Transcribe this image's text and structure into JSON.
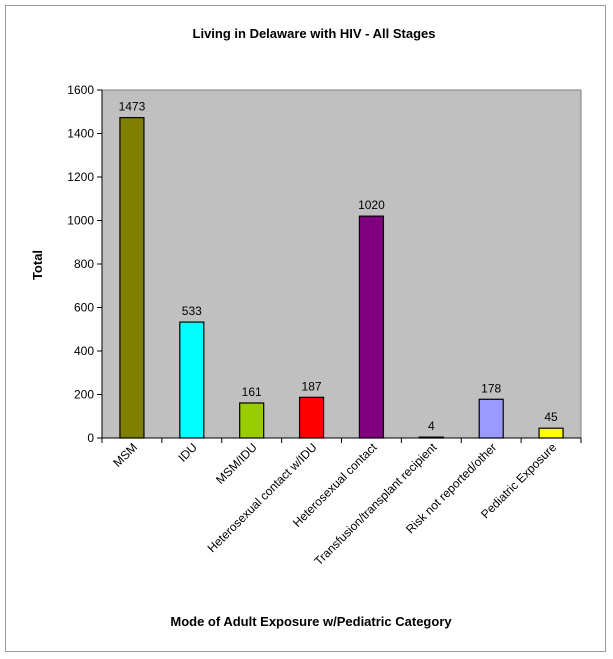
{
  "chart_data": {
    "type": "bar",
    "title": "Living in Delaware with HIV - All Stages",
    "xlabel": "Mode of Adult Exposure w/Pediatric Category",
    "ylabel": "Total",
    "ylim": [
      0,
      1600
    ],
    "yticks": [
      0,
      200,
      400,
      600,
      800,
      1000,
      1200,
      1400,
      1600
    ],
    "categories": [
      "MSM",
      "IDU",
      "MSM/IDU",
      "Heterosexual contact w/IDU",
      "Heterosexual contact",
      "Transfusion/transplant recipient",
      "Risk not reported/other",
      "Pediatric Exposure"
    ],
    "values": [
      1473,
      533,
      161,
      187,
      1020,
      4,
      178,
      45
    ],
    "data_labels": [
      "1473",
      "533",
      "161",
      "187",
      "1020",
      "4",
      "178",
      "45"
    ],
    "bar_colors": [
      "#808000",
      "#00FFFF",
      "#99CC00",
      "#FF0000",
      "#800080",
      "#000000",
      "#9999FF",
      "#FFFF00"
    ],
    "plot_background": "#C0C0C0",
    "grid": false,
    "legend": "none"
  }
}
